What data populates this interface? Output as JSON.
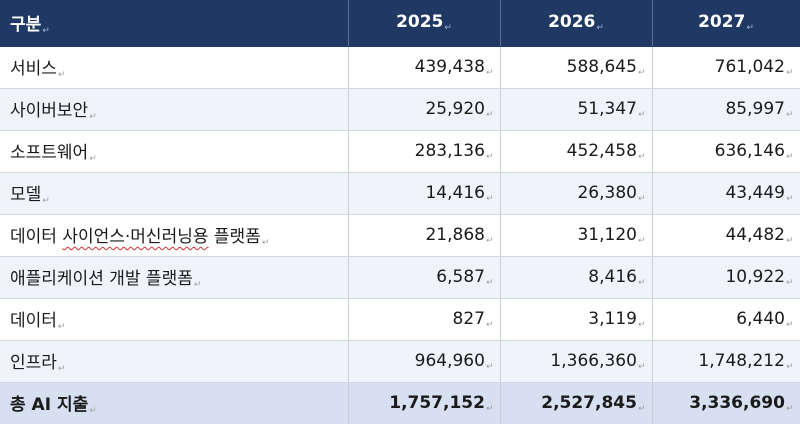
{
  "table": {
    "headers": [
      "구분",
      "2025",
      "2026",
      "2027"
    ],
    "rows": [
      {
        "label": "서비스",
        "values": [
          "439,438",
          "588,645",
          "761,042"
        ]
      },
      {
        "label": "사이버보안",
        "values": [
          "25,920",
          "51,347",
          "85,997"
        ]
      },
      {
        "label": "소프트웨어",
        "values": [
          "283,136",
          "452,458",
          "636,146"
        ]
      },
      {
        "label": "모델",
        "values": [
          "14,416",
          "26,380",
          "43,449"
        ]
      },
      {
        "label_part1": "데이터 ",
        "label_part2": "사이언스·머신러닝용",
        "label_part3": " 플랫폼",
        "values": [
          "21,868",
          "31,120",
          "44,482"
        ]
      },
      {
        "label": "애플리케이션 개발 플랫폼",
        "values": [
          "6,587",
          "8,416",
          "10,922"
        ]
      },
      {
        "label": "데이터",
        "values": [
          "827",
          "3,119",
          "6,440"
        ]
      },
      {
        "label": "인프라",
        "values": [
          "964,960",
          "1,366,360",
          "1,748,212"
        ]
      }
    ],
    "total": {
      "label": "총 AI 지출",
      "values": [
        "1,757,152",
        "2,527,845",
        "3,336,690"
      ]
    },
    "colors": {
      "header_bg": "#1f3864",
      "alt_row_bg": "#f0f4fa",
      "total_bg": "#d6e0f0"
    },
    "paragraph_mark": "↵"
  }
}
